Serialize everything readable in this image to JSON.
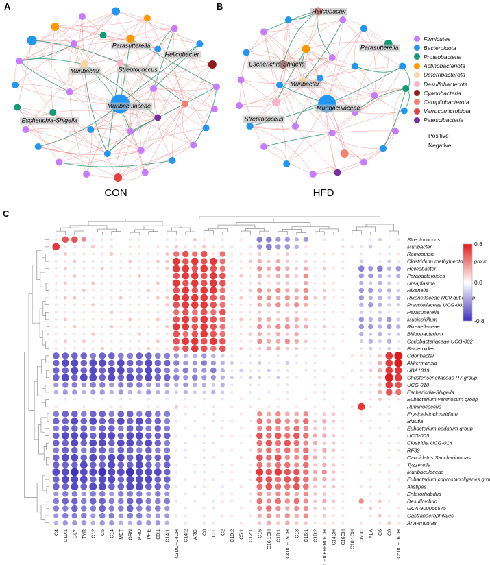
{
  "panels": {
    "a": {
      "letter": "A",
      "caption": "CON"
    },
    "b": {
      "letter": "B",
      "caption": "HFD"
    },
    "c": {
      "letter": "C"
    }
  },
  "legend": {
    "phyla": [
      {
        "label": "Firmicutes",
        "color": "#c77cff"
      },
      {
        "label": "Bacteroidota",
        "color": "#2196f3"
      },
      {
        "label": "Proteobacteria",
        "color": "#0f9b76"
      },
      {
        "label": "Actinobacteriota",
        "color": "#ff9800"
      },
      {
        "label": "Deferribacterota",
        "color": "#f6d7a8"
      },
      {
        "label": "Desulfobacterota",
        "color": "#f9b4c8"
      },
      {
        "label": "Cyanobacteria",
        "color": "#8e1b1b"
      },
      {
        "label": "Campilobacterota",
        "color": "#f5806f"
      },
      {
        "label": "Verrucomicrobiota",
        "color": "#e8413c"
      },
      {
        "label": "Patescibacteria",
        "color": "#7a2fa0"
      }
    ],
    "edge_types": [
      {
        "label": "Positive",
        "color": "#f2827f"
      },
      {
        "label": "Negative",
        "color": "#2f9e77"
      }
    ]
  },
  "chart_data": [
    {
      "type": "network",
      "title": "CON",
      "edge_seed": 11,
      "edge_count": 155,
      "negative_fraction": 0.1,
      "max_dist": 0.55,
      "nodes": [
        [
          0.5,
          0.01,
          6,
          1
        ],
        [
          0.34,
          0.04,
          5,
          0
        ],
        [
          0.65,
          0.05,
          5,
          3
        ],
        [
          0.21,
          0.1,
          6,
          3
        ],
        [
          0.78,
          0.11,
          5,
          0
        ],
        [
          0.1,
          0.18,
          7,
          1
        ],
        [
          0.9,
          0.2,
          5,
          1
        ],
        [
          0.04,
          0.3,
          5,
          0
        ],
        [
          0.96,
          0.32,
          6,
          6
        ],
        [
          0.02,
          0.44,
          5,
          1
        ],
        [
          0.98,
          0.45,
          5,
          0
        ],
        [
          0.03,
          0.57,
          5,
          2
        ],
        [
          0.97,
          0.58,
          5,
          0
        ],
        [
          0.07,
          0.7,
          5,
          0
        ],
        [
          0.93,
          0.69,
          5,
          1
        ],
        [
          0.13,
          0.8,
          5,
          1
        ],
        [
          0.87,
          0.79,
          5,
          0
        ],
        [
          0.23,
          0.89,
          5,
          0
        ],
        [
          0.77,
          0.88,
          5,
          1
        ],
        [
          0.36,
          0.96,
          5,
          0
        ],
        [
          0.51,
          0.98,
          6,
          8
        ],
        [
          0.64,
          0.95,
          5,
          0
        ],
        [
          0.3,
          0.2,
          5,
          0
        ],
        [
          0.44,
          0.15,
          5,
          2
        ],
        [
          0.57,
          0.17,
          6,
          3
        ],
        [
          0.7,
          0.23,
          5,
          1
        ],
        [
          0.35,
          0.32,
          6,
          4
        ],
        [
          0.52,
          0.31,
          5,
          5
        ],
        [
          0.52,
          0.55,
          14,
          1
        ],
        [
          0.28,
          0.48,
          5,
          0
        ],
        [
          0.68,
          0.46,
          5,
          0
        ],
        [
          0.2,
          0.6,
          5,
          2
        ],
        [
          0.38,
          0.7,
          5,
          1
        ],
        [
          0.57,
          0.71,
          5,
          0
        ],
        [
          0.7,
          0.63,
          5,
          9
        ],
        [
          0.46,
          0.84,
          5,
          1
        ],
        [
          0.62,
          0.82,
          5,
          0
        ],
        [
          0.83,
          0.55,
          5,
          7
        ]
      ],
      "labels": [
        {
          "text": "Parasutterella",
          "x": 0.57,
          "y": 0.23
        },
        {
          "text": "Helicobacter",
          "x": 0.8,
          "y": 0.28
        },
        {
          "text": "Muribacter",
          "x": 0.36,
          "y": 0.37
        },
        {
          "text": "Streptococcus",
          "x": 0.6,
          "y": 0.36
        },
        {
          "text": "Muribaculaceae",
          "x": 0.56,
          "y": 0.56
        },
        {
          "text": "Escherichia-Shigella",
          "x": 0.2,
          "y": 0.64
        }
      ]
    },
    {
      "type": "network",
      "title": "HFD",
      "edge_seed": 23,
      "edge_count": 118,
      "negative_fraction": 0.13,
      "max_dist": 0.5,
      "nodes": [
        [
          0.47,
          0.01,
          6,
          8
        ],
        [
          0.3,
          0.06,
          5,
          1
        ],
        [
          0.61,
          0.06,
          5,
          0
        ],
        [
          0.73,
          0.11,
          5,
          1
        ],
        [
          0.16,
          0.13,
          5,
          0
        ],
        [
          0.87,
          0.2,
          6,
          2
        ],
        [
          0.06,
          0.25,
          5,
          1
        ],
        [
          0.95,
          0.33,
          5,
          1
        ],
        [
          0.27,
          0.32,
          6,
          6
        ],
        [
          0.03,
          0.41,
          5,
          0
        ],
        [
          0.97,
          0.46,
          5,
          2
        ],
        [
          0.38,
          0.42,
          6,
          4
        ],
        [
          0.02,
          0.56,
          5,
          0
        ],
        [
          0.96,
          0.59,
          5,
          1
        ],
        [
          0.08,
          0.68,
          5,
          1
        ],
        [
          0.91,
          0.71,
          5,
          0
        ],
        [
          0.16,
          0.8,
          5,
          0
        ],
        [
          0.84,
          0.81,
          5,
          1
        ],
        [
          0.29,
          0.9,
          5,
          1
        ],
        [
          0.73,
          0.89,
          5,
          0
        ],
        [
          0.44,
          0.96,
          5,
          0
        ],
        [
          0.58,
          0.95,
          5,
          9
        ],
        [
          0.23,
          0.54,
          6,
          5
        ],
        [
          0.52,
          0.55,
          13,
          1
        ],
        [
          0.4,
          0.23,
          6,
          3
        ],
        [
          0.55,
          0.28,
          5,
          0
        ],
        [
          0.68,
          0.33,
          5,
          1
        ],
        [
          0.34,
          0.68,
          5,
          0
        ],
        [
          0.55,
          0.72,
          5,
          0
        ],
        [
          0.68,
          0.6,
          5,
          0
        ],
        [
          0.48,
          0.4,
          5,
          1
        ],
        [
          0.79,
          0.5,
          5,
          0
        ],
        [
          0.62,
          0.84,
          6,
          7
        ],
        [
          0.25,
          0.44,
          5,
          1
        ]
      ],
      "labels": [
        {
          "text": "Helicobacter",
          "x": 0.53,
          "y": 0.04
        },
        {
          "text": "Parasutterella",
          "x": 0.8,
          "y": 0.24
        },
        {
          "text": "Escherichia-Shigella",
          "x": 0.25,
          "y": 0.33
        },
        {
          "text": "Muribacter",
          "x": 0.4,
          "y": 0.44
        },
        {
          "text": "Muribaculaceae",
          "x": 0.58,
          "y": 0.57
        },
        {
          "text": "Streptococcus",
          "x": 0.18,
          "y": 0.63
        }
      ]
    },
    {
      "type": "heatmap",
      "subtype": "bubble-correlation",
      "rows": [
        "Streptococcus",
        "Muribacter",
        "Romboutsia",
        "Clostridium methylpentosum group",
        "Helicobacter",
        "Parabacteroides",
        "Ureaplasma",
        "Rikenella",
        "Rikenellaceae RC9 gut group",
        "Prevotellaceae UCG-001",
        "Parasutterella",
        "Mucispirillum",
        "Rikenellaceae",
        "Bifidobacterium",
        "Coriobacteriaceae UCG-002",
        "Bacteroides",
        "Odoribacter",
        "Akkermansia",
        "UBA1819",
        "Christensenellaceae R7 group",
        "UCG-010",
        "Escherichia-Shigella",
        "Eubacterium ventriosum group",
        "Ruminococcus",
        "Erysipelatoclostridium",
        "Blautia",
        "Eubacterium nodatum group",
        "UCG-005",
        "Clostridia UCG-014",
        "RF39",
        "Candidatus Saccharimonas",
        "Tyzzerella",
        "Muribaculaceae",
        "Eubacterium coprostanoligenes group",
        "Alistipes",
        "Enterorhabdus",
        "Desulfovibrio",
        "GCA-900066575",
        "Gastranaerophilales",
        "Anaerovorax"
      ],
      "cols": [
        "C4",
        "C10:1",
        "GLY",
        "TYR",
        "C12",
        "C5",
        "C14",
        "MET",
        "ORN",
        "PRO",
        "PHE",
        "C8:1",
        "C14:1",
        "C3DC+C4OH",
        "C14:2",
        "ARG",
        "C8",
        "CIT",
        "C2",
        "C10:2",
        "C5:1",
        "C12:1",
        "C16",
        "C16:1OH",
        "C18:1",
        "C4DC+C5OH",
        "C18",
        "C16:1",
        "C18:2",
        "LEU+ILE+PRO-OH",
        "C14OH",
        "C16OH",
        "C18:1OH",
        "C6DC",
        "ALA",
        "C6",
        "C0",
        "C5DC+C6OH"
      ],
      "value_scale": {
        "chars": "abcdefghijklmnopq",
        "min": -0.8,
        "step": 0.1
      },
      "values": [
        "joomjjjijjiijjikjijijiddeefeijihiihgij",
        "pjjjkjjijjijjkjjkjjjijedeefjiiijhhgihi",
        "jkjjjjkjjjjjknonojnjjjkjjkjjjjjjihijhj",
        "jjkjjjjjkjjkkpopopnjjklklkjkjjijigihgj",
        "jkjjjkjjjjjjkppoponjjjmlmlkljkjjidedfe",
        "jjkjjjjjjkjjjoppopojkjlkllkmjjijieefgf",
        "jkjjkjjjjjjkjpopopojjjkjkkjljjjiifgfgh",
        "jjjkjjjjjjkjjopoppnjjkmlmllmjkjjieeffg",
        "jkkjjjjkjjjkkpppponjkjmmlmlmkkjjieffgf",
        "jjjjkjjjjjjjkoppponjjjllmlmljjijifefgg",
        "jjjjjjkjjjjjjnononojjjkjkjkjjjjjighghh",
        "jkjjjjjjkjjkjopoponjkjllkllkjjiijeffeg",
        "jjkjjjkjjjjjkppoponjjjmlmmlljkjjieefef",
        "jjjjkjjjjkjjjonoponjjklklkljjjjjifgfgg",
        "jkjkjjjjjjjkjoppopojjjmllmlkjjijigfgfh",
        "jjjjjkjjjjkjjnoponojkjkllkkjjjjiihghgh",
        "ccccdccddccddeffefghihhihihijijijjjkpq",
        "cbbcbbcbccbccdeedefghhghhghhjiijijjlpq",
        "ccbcbcbbccbcdedeedfhghhghhihjjiijjklpp",
        "cbcbbcbcbcbccdedeefghgghghhijijjijjkqp",
        "eddeddedddeeefeffgfhihhihhiijjiijjjkpo",
        "feefeefeffeffgfggfghihihihiijjijijjlon",
        "ihhihhihhihihihihihijijijjijijijiijkjj",
        "jiijiijjiijjikjjijijijijjijijijijpjiji",
        "dccdccdccdcddihijhiijimlmllmjkkjijijji",
        "ccbcbccbcbccdhihihjjijnmnmmnklkjijjiji",
        "dcccdccdccdcdihihijijimnmmnmkkjjiijjij",
        "cbbbcbbcbbccchihhijjijonononllkjijijji",
        "ccbcbbcbbcbcdihijhiijinononmlkkjijjijj",
        "dccdccdccdcddjhihijjijmnmnmnklkjiijijj",
        "cbbcbcbbcbcccihihjiijionommnlkjjijjiji",
        "cccbccbccbcdchijhihjijnmnnmnklkjiijjij",
        "bbabbabbabbbchihhijjijpopoonlmkjijijji",
        "cbbbcbbcbbbccihijhijijoonoonllkjiijijj",
        "ccbcbbccbbccdhihjihijinonnonkkkjijjiji",
        "eddeddedddedeihihijjijmlmmlmkkjjiijjij",
        "dccdccddccdddhihihjjijnmnmnmklkjimjkji",
        "ddcddcddcdddeihijhiijimnmlmmkkjjijkjij",
        "edddeddeddeeejhihijjijlmlmlmjkjjiijkjj",
        "feeefeeffeeefihihjiijiklklkkjjjjijijkj"
      ],
      "colorbar": {
        "pos_color": "#e31a1c",
        "mid_color": "#ffffff",
        "neg_color": "#3f30be",
        "ticks": [
          {
            "label": "0.8",
            "frac": 0
          },
          {
            "label": "0.0",
            "frac": 0.5
          },
          {
            "label": "-0.8",
            "frac": 1
          }
        ]
      }
    }
  ]
}
